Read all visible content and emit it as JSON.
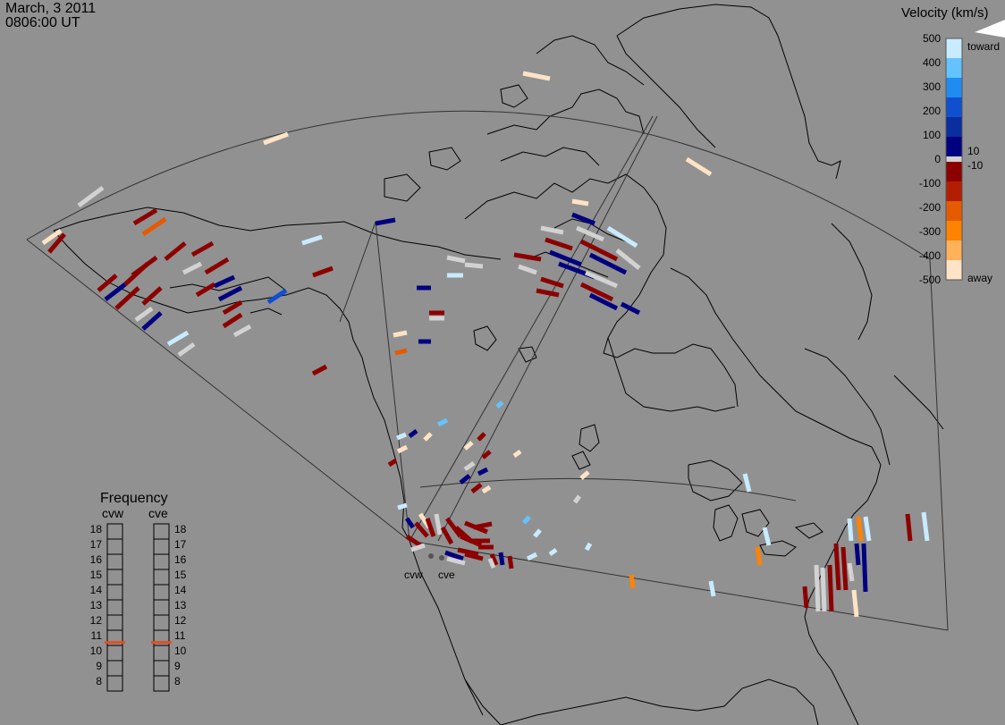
{
  "header": {
    "date": "March, 3 2011",
    "time": "0806:00 UT"
  },
  "velocity_scale": {
    "title": "Velocity (km/s)",
    "ticks": [
      "500",
      "400",
      "300",
      "200",
      "100",
      "0",
      "-100",
      "-200",
      "-300",
      "-400",
      "-500"
    ],
    "inner_ticks": [
      "10",
      "-10"
    ],
    "toward_label": "toward",
    "away_label": "away",
    "colors": [
      "#ffe3c6",
      "#ffb25a",
      "#ff8200",
      "#e65a00",
      "#b41e00",
      "#8c0000",
      "#ffffff",
      "#000080",
      "#0a2da0",
      "#1050d0",
      "#1e8cf0",
      "#64c3ff",
      "#c8ebff"
    ],
    "ground_scatter_color": "#d2d2d2"
  },
  "frequency": {
    "title": "Frequency",
    "radars": [
      "cvw",
      "cve"
    ],
    "levels": [
      "18",
      "17",
      "16",
      "15",
      "14",
      "13",
      "12",
      "11",
      "10",
      "9",
      "8"
    ],
    "current_mhz": {
      "cvw": 11,
      "cve": 11
    },
    "indicator_color": "#e05020"
  },
  "radar_labels": [
    "cvw",
    "cve"
  ]
}
